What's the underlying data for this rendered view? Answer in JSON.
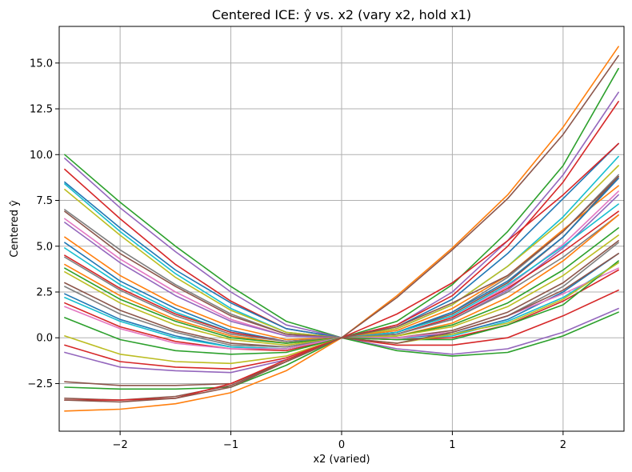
{
  "chart_data": {
    "type": "line",
    "title": "Centered ICE: ŷ vs. x2 (vary x2, hold x1)",
    "xlabel": "x2 (varied)",
    "ylabel": "Centered ŷ",
    "xlim": [
      -2.55,
      2.55
    ],
    "ylim": [
      -5.1,
      17.0
    ],
    "xticks": [
      -2,
      -1,
      0,
      1,
      2
    ],
    "xtick_labels": [
      "−2",
      "−1",
      "0",
      "1",
      "2"
    ],
    "yticks": [
      -2.5,
      0.0,
      2.5,
      5.0,
      7.5,
      10.0,
      12.5,
      15.0
    ],
    "ytick_labels": [
      "−2.5",
      "0.0",
      "2.5",
      "5.0",
      "7.5",
      "10.0",
      "12.5",
      "15.0"
    ],
    "grid": true,
    "legend": "none",
    "colors": [
      "#1f77b4",
      "#ff7f0e",
      "#2ca02c",
      "#d62728",
      "#9467bd",
      "#8c564b",
      "#e377c2",
      "#7f7f7f",
      "#bcbd22",
      "#17becf"
    ],
    "x": [
      -2.5,
      -2.0,
      -1.5,
      -1.0,
      -0.5,
      0.0,
      0.5,
      1.0,
      1.5,
      2.0,
      2.5
    ],
    "series": [
      {
        "color": "#2ca02c",
        "values": [
          10.0,
          7.4,
          5.0,
          2.8,
          0.9,
          0.0,
          0.9,
          2.9,
          5.8,
          9.4,
          14.7
        ]
      },
      {
        "color": "#9467bd",
        "values": [
          9.8,
          7.1,
          4.7,
          2.5,
          0.7,
          0.0,
          0.7,
          2.5,
          5.3,
          8.9,
          13.4
        ]
      },
      {
        "color": "#d62728",
        "values": [
          9.2,
          6.5,
          4.0,
          2.0,
          0.5,
          0.0,
          0.7,
          2.3,
          5.0,
          8.5,
          12.9
        ]
      },
      {
        "color": "#1f77b4",
        "values": [
          8.5,
          6.0,
          3.7,
          1.9,
          0.5,
          0.0,
          0.6,
          2.1,
          4.6,
          7.6,
          10.6
        ]
      },
      {
        "color": "#17becf",
        "values": [
          8.4,
          5.8,
          3.5,
          1.6,
          0.3,
          0.0,
          0.5,
          1.8,
          3.9,
          6.6,
          9.9
        ]
      },
      {
        "color": "#bcbd22",
        "values": [
          8.1,
          5.6,
          3.3,
          1.5,
          0.3,
          0.0,
          0.5,
          1.8,
          3.9,
          6.4,
          9.4
        ]
      },
      {
        "color": "#7f7f7f",
        "values": [
          7.0,
          4.8,
          2.9,
          1.3,
          0.2,
          0.0,
          0.3,
          1.4,
          3.3,
          5.8,
          8.9
        ]
      },
      {
        "color": "#8c564b",
        "values": [
          6.9,
          4.6,
          2.8,
          1.2,
          0.2,
          0.0,
          0.3,
          1.3,
          3.0,
          5.5,
          8.8
        ]
      },
      {
        "color": "#e377c2",
        "values": [
          6.5,
          4.3,
          2.5,
          1.0,
          0.1,
          0.0,
          0.2,
          1.1,
          2.8,
          5.1,
          8.0
        ]
      },
      {
        "color": "#9467bd",
        "values": [
          6.3,
          4.1,
          2.3,
          0.9,
          0.1,
          0.0,
          0.2,
          1.0,
          2.6,
          4.9,
          7.8
        ]
      },
      {
        "color": "#ff7f0e",
        "values": [
          5.5,
          3.4,
          1.8,
          0.6,
          -0.1,
          0.0,
          0.4,
          1.6,
          3.4,
          5.9,
          8.3
        ]
      },
      {
        "color": "#1f77b4",
        "values": [
          5.2,
          3.1,
          1.6,
          0.4,
          -0.2,
          0.0,
          0.3,
          1.4,
          3.1,
          5.5,
          8.7
        ]
      },
      {
        "color": "#17becf",
        "values": [
          4.9,
          2.9,
          1.4,
          0.3,
          -0.2,
          0.0,
          0.3,
          1.2,
          2.9,
          5.0,
          7.3
        ]
      },
      {
        "color": "#d62728",
        "values": [
          4.5,
          2.7,
          1.3,
          0.3,
          -0.2,
          0.0,
          0.2,
          1.1,
          2.7,
          4.7,
          6.9
        ]
      },
      {
        "color": "#7f7f7f",
        "values": [
          4.4,
          2.6,
          1.2,
          0.2,
          -0.2,
          0.0,
          0.2,
          1.0,
          2.5,
          4.4,
          6.7
        ]
      },
      {
        "color": "#ff7f0e",
        "values": [
          4.0,
          2.3,
          1.0,
          0.1,
          -0.3,
          0.0,
          0.1,
          0.8,
          2.2,
          4.2,
          6.7
        ]
      },
      {
        "color": "#2ca02c",
        "values": [
          3.8,
          2.1,
          0.9,
          0.0,
          -0.3,
          0.0,
          0.1,
          0.7,
          1.9,
          3.7,
          6.0
        ]
      },
      {
        "color": "#bcbd22",
        "values": [
          3.6,
          1.9,
          0.7,
          -0.1,
          -0.4,
          0.0,
          0.1,
          0.6,
          1.7,
          3.4,
          5.6
        ]
      },
      {
        "color": "#8c564b",
        "values": [
          3.0,
          1.5,
          0.4,
          -0.3,
          -0.5,
          0.0,
          0.0,
          0.4,
          1.4,
          3.0,
          5.3
        ]
      },
      {
        "color": "#7f7f7f",
        "values": [
          2.8,
          1.3,
          0.3,
          -0.4,
          -0.5,
          0.0,
          0.0,
          0.3,
          1.2,
          2.8,
          5.2
        ]
      },
      {
        "color": "#1f77b4",
        "values": [
          2.4,
          1.0,
          0.1,
          -0.5,
          -0.6,
          0.0,
          0.0,
          0.2,
          1.0,
          2.5,
          4.6
        ]
      },
      {
        "color": "#17becf",
        "values": [
          2.2,
          0.9,
          0.0,
          -0.5,
          -0.6,
          0.0,
          -0.1,
          0.1,
          0.9,
          2.2,
          4.1
        ]
      },
      {
        "color": "#d62728",
        "values": [
          1.9,
          0.6,
          -0.2,
          -0.6,
          -0.7,
          0.0,
          -0.1,
          0.0,
          0.7,
          2.0,
          3.7
        ]
      },
      {
        "color": "#e377c2",
        "values": [
          1.7,
          0.5,
          -0.3,
          -0.6,
          -0.6,
          0.0,
          0.0,
          0.3,
          1.2,
          2.4,
          3.8
        ]
      },
      {
        "color": "#2ca02c",
        "values": [
          1.1,
          -0.1,
          -0.7,
          -0.9,
          -0.8,
          0.0,
          -0.1,
          -0.1,
          0.7,
          1.8,
          4.2
        ]
      },
      {
        "color": "#bcbd22",
        "values": [
          0.1,
          -0.9,
          -1.3,
          -1.4,
          -1.0,
          0.0,
          -0.3,
          0.2,
          0.8,
          2.1,
          4.1
        ]
      },
      {
        "color": "#d62728",
        "values": [
          -0.4,
          -1.3,
          -1.6,
          -1.7,
          -1.1,
          0.0,
          -0.4,
          -0.4,
          0.0,
          1.2,
          2.6
        ]
      },
      {
        "color": "#9467bd",
        "values": [
          -0.8,
          -1.6,
          -1.8,
          -1.9,
          -1.2,
          0.0,
          -0.6,
          -0.9,
          -0.6,
          0.3,
          1.6
        ]
      },
      {
        "color": "#2ca02c",
        "values": [
          -2.7,
          -2.8,
          -2.8,
          -2.7,
          -1.5,
          0.0,
          -0.7,
          -1.0,
          -0.8,
          0.1,
          1.4
        ]
      },
      {
        "color": "#8c564b",
        "values": [
          -2.4,
          -2.6,
          -2.6,
          -2.5,
          -1.3,
          0.0,
          -0.3,
          0.3,
          1.2,
          2.6,
          4.6
        ]
      },
      {
        "color": "#8c564b",
        "values": [
          -3.3,
          -3.4,
          -3.2,
          -2.6,
          -1.3,
          0.0,
          0.6,
          1.9,
          3.4,
          5.8,
          8.8
        ]
      },
      {
        "color": "#d62728",
        "values": [
          -3.4,
          -3.4,
          -3.3,
          -2.5,
          -1.2,
          0.0,
          1.3,
          3.0,
          5.3,
          7.8,
          10.6
        ]
      },
      {
        "color": "#ff7f0e",
        "values": [
          -4.0,
          -3.9,
          -3.6,
          -3.0,
          -1.8,
          0.0,
          2.3,
          4.9,
          7.8,
          11.5,
          15.9
        ]
      },
      {
        "color": "#8c564b",
        "values": [
          -3.4,
          -3.5,
          -3.3,
          -2.7,
          -1.3,
          0.0,
          2.2,
          4.8,
          7.6,
          11.1,
          15.4
        ]
      }
    ]
  }
}
